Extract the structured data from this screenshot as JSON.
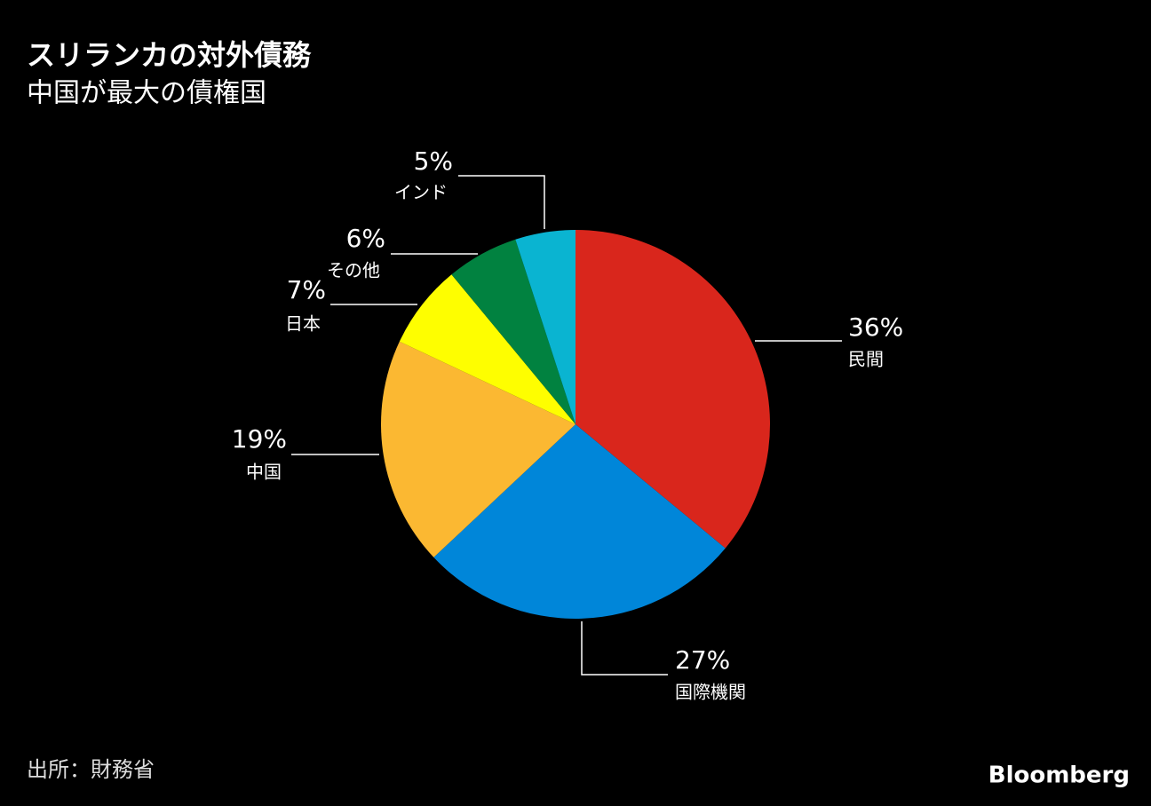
{
  "chart_data": {
    "type": "pie",
    "title": "スリランカの対外債務",
    "subtitle": "中国が最大の債権国",
    "categories": [
      "民間",
      "国際機関",
      "中国",
      "日本",
      "その他",
      "インド"
    ],
    "values": [
      36,
      27,
      19,
      7,
      6,
      5
    ],
    "value_labels": [
      "36%",
      "27%",
      "19%",
      "7%",
      "6%",
      "5%"
    ],
    "colors": [
      "#d9261c",
      "#0086d9",
      "#fbb832",
      "#fefe00",
      "#018240",
      "#0ab4d1"
    ],
    "source": "出所：財務省",
    "logo": "Bloomberg"
  }
}
